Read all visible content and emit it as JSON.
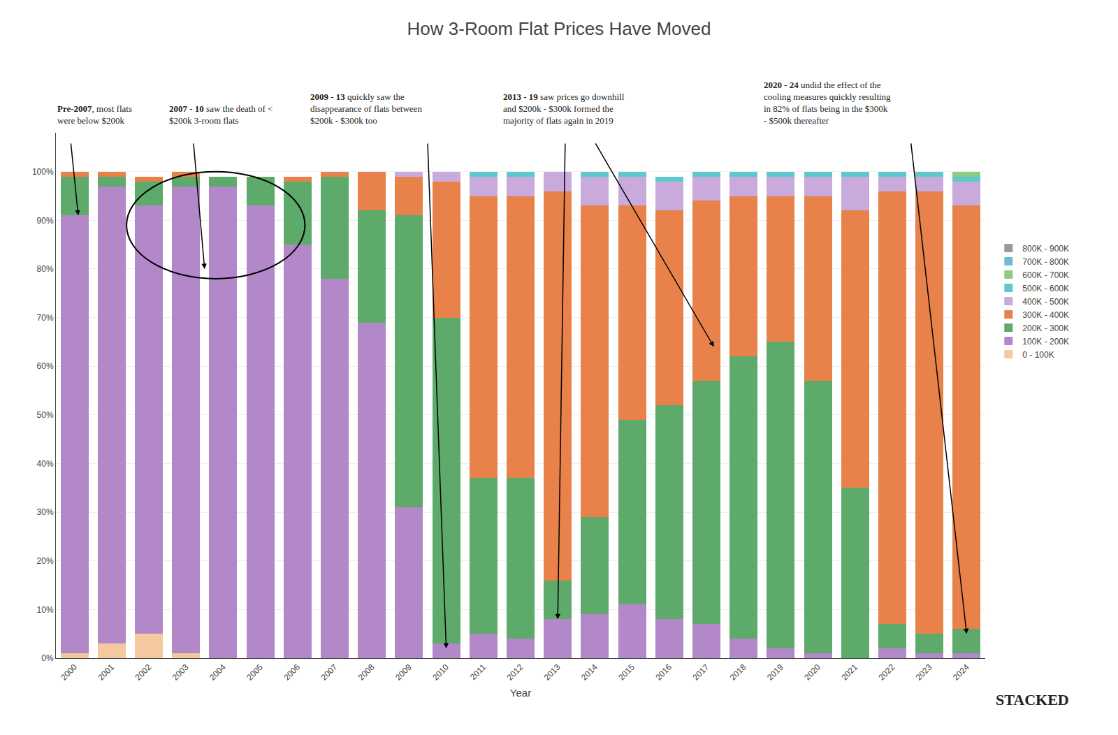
{
  "chart_data": {
    "type": "bar",
    "stacked": true,
    "title": "How 3-Room Flat Prices Have Moved",
    "xlabel": "Year",
    "categories": [
      "2000",
      "2001",
      "2002",
      "2003",
      "2004",
      "2005",
      "2006",
      "2007",
      "2008",
      "2009",
      "2010",
      "2011",
      "2012",
      "2013",
      "2014",
      "2015",
      "2016",
      "2017",
      "2018",
      "2019",
      "2020",
      "2021",
      "2022",
      "2023",
      "2024"
    ],
    "series": [
      {
        "name": "0 - 100K",
        "color": "#f5c9a0",
        "values": [
          1,
          3,
          5,
          1,
          0,
          0,
          0,
          0,
          0,
          0,
          0,
          0,
          0,
          0,
          0,
          0,
          0,
          0,
          0,
          0,
          0,
          0,
          0,
          0,
          0
        ]
      },
      {
        "name": "100K - 200K",
        "color": "#b388c8",
        "values": [
          90,
          94,
          88,
          96,
          97,
          93,
          85,
          78,
          69,
          31,
          3,
          5,
          4,
          8,
          9,
          11,
          8,
          7,
          4,
          2,
          1,
          0,
          2,
          1,
          1
        ]
      },
      {
        "name": "200K - 300K",
        "color": "#5daa6a",
        "values": [
          8,
          2,
          5,
          2,
          2,
          6,
          13,
          21,
          23,
          60,
          67,
          32,
          33,
          8,
          20,
          38,
          44,
          50,
          58,
          63,
          56,
          35,
          5,
          4,
          5
        ]
      },
      {
        "name": "300K - 400K",
        "color": "#e8814a",
        "values": [
          1,
          1,
          1,
          1,
          0,
          0,
          1,
          1,
          8,
          8,
          28,
          58,
          58,
          80,
          64,
          44,
          40,
          37,
          33,
          30,
          38,
          57,
          89,
          91,
          87
        ]
      },
      {
        "name": "400K - 500K",
        "color": "#c9aadd",
        "values": [
          0,
          0,
          0,
          0,
          0,
          0,
          0,
          0,
          0,
          1,
          2,
          4,
          4,
          4,
          6,
          6,
          6,
          5,
          4,
          4,
          4,
          7,
          3,
          3,
          5
        ]
      },
      {
        "name": "500K - 600K",
        "color": "#5ec8cc",
        "values": [
          0,
          0,
          0,
          0,
          0,
          0,
          0,
          0,
          0,
          0,
          0,
          1,
          1,
          0,
          1,
          1,
          1,
          1,
          1,
          1,
          1,
          1,
          1,
          1,
          1
        ]
      },
      {
        "name": "600K - 700K",
        "color": "#8dca82",
        "values": [
          0,
          0,
          0,
          0,
          0,
          0,
          0,
          0,
          0,
          0,
          0,
          0,
          0,
          0,
          0,
          0,
          0,
          0,
          0,
          0,
          0,
          0,
          0,
          0,
          1
        ]
      },
      {
        "name": "700K - 800K",
        "color": "#6dbfcf",
        "values": [
          0,
          0,
          0,
          0,
          0,
          0,
          0,
          0,
          0,
          0,
          0,
          0,
          0,
          0,
          0,
          0,
          0,
          0,
          0,
          0,
          0,
          0,
          0,
          0,
          0
        ]
      },
      {
        "name": "800K - 900K",
        "color": "#9a9a9a",
        "values": [
          0,
          0,
          0,
          0,
          0,
          0,
          0,
          0,
          0,
          0,
          0,
          0,
          0,
          0,
          0,
          0,
          0,
          0,
          0,
          0,
          0,
          0,
          0,
          0,
          0
        ]
      }
    ],
    "ylim": [
      0,
      108
    ],
    "yticks": [
      {
        "value": 0,
        "label": "0%"
      },
      {
        "value": 10,
        "label": "10%"
      },
      {
        "value": 20,
        "label": "20%"
      },
      {
        "value": 30,
        "label": "30%"
      },
      {
        "value": 40,
        "label": "40%"
      },
      {
        "value": 50,
        "label": "50%"
      },
      {
        "value": 60,
        "label": "60%"
      },
      {
        "value": 70,
        "label": "70%"
      },
      {
        "value": 80,
        "label": "80%"
      },
      {
        "value": 90,
        "label": "90%"
      },
      {
        "value": 100,
        "label": "100%"
      }
    ],
    "grid": true,
    "legend": "upper right",
    "annotations": [
      {
        "bold": "Pre-2007",
        "text": ", most flats\nwere below $200k"
      },
      {
        "bold": "2007 - 10",
        "text": " saw the death of <\n$200k 3-room flats"
      },
      {
        "bold": "2009 - 13",
        "text": " quickly saw the\ndisappearance of flats between\n$200k - $300k too"
      },
      {
        "bold": "2013 - 19",
        "text": " saw prices go downhill\nand $200k - $300k formed the\nmajority of flats again in 2019"
      },
      {
        "bold": "2020 - 24",
        "text": " undid the effect of the\ncooling measures quickly resulting\nin 82% of flats being in the $300k\n- $500k thereafter"
      }
    ],
    "watermark": "STACKED"
  }
}
